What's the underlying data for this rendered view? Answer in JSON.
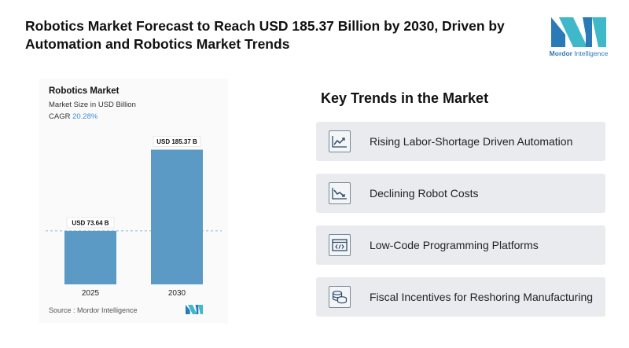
{
  "headline": "Robotics Market Forecast to Reach USD 185.37 Billion by 2030, Driven by Automation and Robotics Market Trends",
  "brand": {
    "name_part1": "Mordor",
    "name_part2": " Intelligence",
    "primary_color": "#2b7ab8",
    "accent_color": "#3fb8c9"
  },
  "chart_data": {
    "type": "bar",
    "title": "Robotics Market",
    "subtitle": "Market Size in USD Billion",
    "cagr_label": "CAGR",
    "cagr_value": "20.28%",
    "categories": [
      "2025",
      "2030"
    ],
    "values": [
      73.64,
      185.37
    ],
    "value_labels": [
      "USD 73.64 B",
      "USD 185.37 B"
    ],
    "ylim": [
      0,
      200
    ],
    "bar_color": "#5b9ac4",
    "reference_line_value": 73.64,
    "grid": false,
    "source": "Source : Mordor Intelligence"
  },
  "trends": {
    "title": "Key Trends in the Market",
    "items": [
      {
        "label": "Rising Labor-Shortage Driven Automation",
        "icon": "trending-up-icon"
      },
      {
        "label": "Declining Robot Costs",
        "icon": "trending-down-icon"
      },
      {
        "label": "Low-Code Programming Platforms",
        "icon": "code-window-icon"
      },
      {
        "label": "Fiscal Incentives for Reshoring Manufacturing",
        "icon": "coins-icon"
      }
    ]
  }
}
